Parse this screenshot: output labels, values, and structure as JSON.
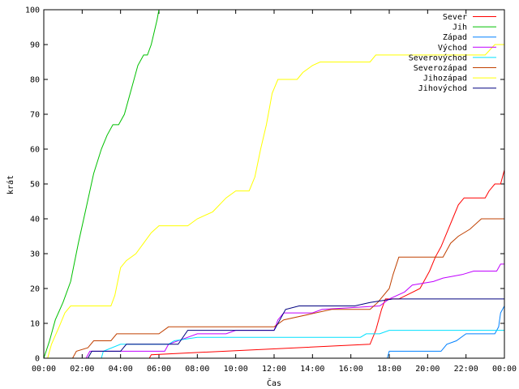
{
  "chart_data": {
    "type": "line",
    "title": "",
    "xlabel": "Čas",
    "ylabel": "krát",
    "x_unit": "hours",
    "xlim": [
      0,
      24
    ],
    "ylim": [
      0,
      100
    ],
    "x_ticks": [
      {
        "v": 0,
        "label": "00:00"
      },
      {
        "v": 2,
        "label": "02:00"
      },
      {
        "v": 4,
        "label": "04:00"
      },
      {
        "v": 6,
        "label": "06:00"
      },
      {
        "v": 8,
        "label": "08:00"
      },
      {
        "v": 10,
        "label": "10:00"
      },
      {
        "v": 12,
        "label": "12:00"
      },
      {
        "v": 14,
        "label": "14:00"
      },
      {
        "v": 16,
        "label": "16:00"
      },
      {
        "v": 18,
        "label": "18:00"
      },
      {
        "v": 20,
        "label": "20:00"
      },
      {
        "v": 22,
        "label": "22:00"
      },
      {
        "v": 24,
        "label": "00:00"
      }
    ],
    "y_ticks": [
      0,
      10,
      20,
      30,
      40,
      50,
      60,
      70,
      80,
      90,
      100
    ],
    "legend_position": "top-right",
    "series": [
      {
        "name": "Sever",
        "color": "#ff0000",
        "points": [
          [
            5.5,
            0
          ],
          [
            5.6,
            1
          ],
          [
            17.0,
            4
          ],
          [
            17.3,
            8
          ],
          [
            17.6,
            14
          ],
          [
            17.8,
            17
          ],
          [
            18.5,
            17
          ],
          [
            19.6,
            20
          ],
          [
            20.1,
            25
          ],
          [
            20.4,
            29
          ],
          [
            20.7,
            32
          ],
          [
            21.0,
            36
          ],
          [
            21.3,
            40
          ],
          [
            21.6,
            44
          ],
          [
            21.9,
            46
          ],
          [
            23.0,
            46
          ],
          [
            23.2,
            48
          ],
          [
            23.5,
            50
          ],
          [
            23.8,
            50
          ],
          [
            24.0,
            54
          ]
        ]
      },
      {
        "name": "Jih",
        "color": "#00c000",
        "points": [
          [
            0.0,
            0
          ],
          [
            0.3,
            5
          ],
          [
            0.6,
            11
          ],
          [
            1.0,
            16
          ],
          [
            1.4,
            22
          ],
          [
            1.8,
            33
          ],
          [
            2.2,
            43
          ],
          [
            2.6,
            53
          ],
          [
            3.0,
            60
          ],
          [
            3.3,
            64
          ],
          [
            3.6,
            67
          ],
          [
            3.9,
            67
          ],
          [
            4.2,
            70
          ],
          [
            4.6,
            78
          ],
          [
            4.9,
            84
          ],
          [
            5.2,
            87
          ],
          [
            5.4,
            87
          ],
          [
            5.6,
            90
          ],
          [
            5.9,
            97
          ],
          [
            6.0,
            100
          ]
        ]
      },
      {
        "name": "Západ",
        "color": "#0080ff",
        "points": [
          [
            17.9,
            0
          ],
          [
            18.0,
            2
          ],
          [
            20.7,
            2
          ],
          [
            21.0,
            4
          ],
          [
            21.5,
            5
          ],
          [
            22.0,
            7
          ],
          [
            23.5,
            7
          ],
          [
            23.7,
            9
          ],
          [
            23.8,
            13
          ],
          [
            24.0,
            15
          ]
        ]
      },
      {
        "name": "Východ",
        "color": "#c000ff",
        "points": [
          [
            2.2,
            0
          ],
          [
            2.4,
            2
          ],
          [
            6.3,
            2
          ],
          [
            6.5,
            4
          ],
          [
            7.5,
            6
          ],
          [
            8.0,
            7
          ],
          [
            9.5,
            7
          ],
          [
            10.0,
            8
          ],
          [
            12.0,
            8
          ],
          [
            12.2,
            11
          ],
          [
            12.5,
            13
          ],
          [
            14.0,
            13
          ],
          [
            14.5,
            14
          ],
          [
            17.5,
            15
          ],
          [
            18.0,
            17
          ],
          [
            18.8,
            19
          ],
          [
            19.2,
            21
          ],
          [
            20.3,
            22
          ],
          [
            20.8,
            23
          ],
          [
            21.8,
            24
          ],
          [
            22.4,
            25
          ],
          [
            23.6,
            25
          ],
          [
            23.8,
            27
          ],
          [
            24.0,
            27
          ]
        ]
      },
      {
        "name": "Severovýchod",
        "color": "#00e0ff",
        "points": [
          [
            3.0,
            0
          ],
          [
            3.1,
            2
          ],
          [
            4.0,
            4
          ],
          [
            6.5,
            4
          ],
          [
            6.8,
            5
          ],
          [
            8.0,
            6
          ],
          [
            16.5,
            6
          ],
          [
            16.8,
            7
          ],
          [
            17.5,
            7
          ],
          [
            18.0,
            8
          ],
          [
            24.0,
            8
          ]
        ]
      },
      {
        "name": "Severozápad",
        "color": "#c04000",
        "points": [
          [
            1.5,
            0
          ],
          [
            1.7,
            2
          ],
          [
            2.3,
            3
          ],
          [
            2.6,
            5
          ],
          [
            3.5,
            5
          ],
          [
            3.8,
            7
          ],
          [
            6.0,
            7
          ],
          [
            6.5,
            9
          ],
          [
            12.0,
            9
          ],
          [
            12.5,
            11
          ],
          [
            15.0,
            14
          ],
          [
            17.0,
            14
          ],
          [
            17.4,
            16
          ],
          [
            18.0,
            20
          ],
          [
            18.2,
            24
          ],
          [
            18.5,
            29
          ],
          [
            20.8,
            29
          ],
          [
            21.2,
            33
          ],
          [
            21.6,
            35
          ],
          [
            22.2,
            37
          ],
          [
            22.8,
            40
          ],
          [
            24.0,
            40
          ]
        ]
      },
      {
        "name": "Jihozápad",
        "color": "#ffff00",
        "points": [
          [
            0.2,
            0
          ],
          [
            0.4,
            4
          ],
          [
            0.8,
            9
          ],
          [
            1.1,
            13
          ],
          [
            1.4,
            15
          ],
          [
            3.5,
            15
          ],
          [
            3.7,
            18
          ],
          [
            4.0,
            26
          ],
          [
            4.3,
            28
          ],
          [
            4.8,
            30
          ],
          [
            5.2,
            33
          ],
          [
            5.6,
            36
          ],
          [
            6.0,
            38
          ],
          [
            7.5,
            38
          ],
          [
            8.0,
            40
          ],
          [
            8.8,
            42
          ],
          [
            9.5,
            46
          ],
          [
            10.0,
            48
          ],
          [
            10.7,
            48
          ],
          [
            11.0,
            52
          ],
          [
            11.3,
            60
          ],
          [
            11.6,
            67
          ],
          [
            11.9,
            76
          ],
          [
            12.2,
            80
          ],
          [
            13.2,
            80
          ],
          [
            13.5,
            82
          ],
          [
            14.0,
            84
          ],
          [
            14.4,
            85
          ],
          [
            17.0,
            85
          ],
          [
            17.3,
            87
          ],
          [
            23.0,
            87
          ],
          [
            23.5,
            90
          ],
          [
            24.0,
            90
          ]
        ]
      },
      {
        "name": "Jihovýchod",
        "color": "#000080",
        "points": [
          [
            2.3,
            0
          ],
          [
            2.5,
            2
          ],
          [
            4.0,
            2
          ],
          [
            4.3,
            4
          ],
          [
            7.0,
            4
          ],
          [
            7.5,
            8
          ],
          [
            12.0,
            8
          ],
          [
            12.6,
            14
          ],
          [
            13.3,
            15
          ],
          [
            15.5,
            15
          ],
          [
            16.2,
            15
          ],
          [
            17.0,
            16
          ],
          [
            18.2,
            17
          ],
          [
            24.0,
            17
          ]
        ]
      }
    ]
  }
}
